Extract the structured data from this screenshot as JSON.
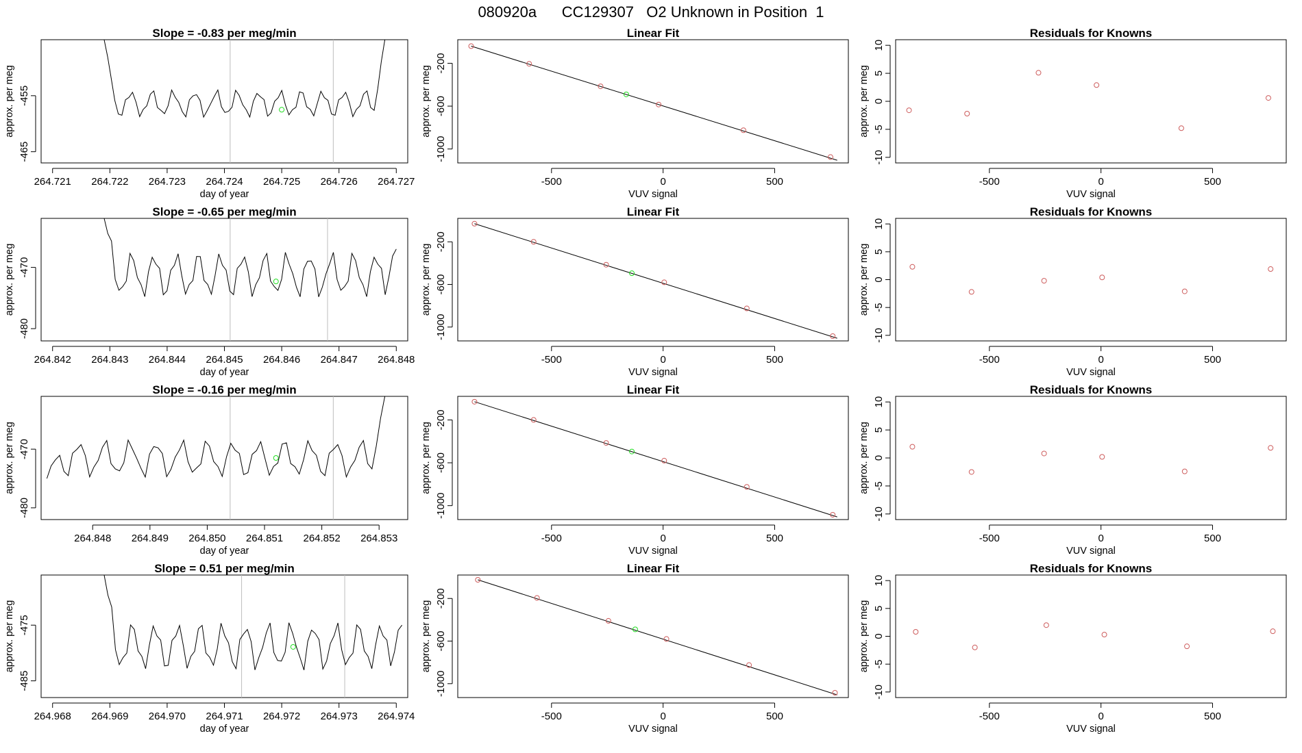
{
  "page": {
    "title": "080920a      CC129307   O2 Unknown in Position  1"
  },
  "colors": {
    "line": "#000000",
    "known_point": "#cd5c5c",
    "unknown_point": "#22dd22",
    "vertical_marker": "#bdbdbd"
  },
  "chart_data": [
    {
      "type": "line",
      "row": 1,
      "panel": "timeseries",
      "title": "Slope =  -0.83  per meg/min",
      "xlabel": "day of year",
      "ylabel": "approx. per meg",
      "xlim": [
        264.7208,
        264.7272
      ],
      "ylim": [
        -467,
        -445
      ],
      "xticks": [
        264.721,
        264.722,
        264.723,
        264.724,
        264.725,
        264.726,
        264.727
      ],
      "xtick_labels": [
        "264.721",
        "264.722",
        "264.723",
        "264.724",
        "264.725",
        "264.726",
        "264.727"
      ],
      "yticks": [
        -455,
        -465
      ],
      "ytick_labels": [
        "-455",
        "-465"
      ],
      "vlines": [
        264.7241,
        264.7259
      ],
      "series": [
        {
          "x_start": 264.7219,
          "x_end": 264.7268,
          "base": -456.4,
          "amplitude": 2.0,
          "period_points": 6,
          "start_high": -445.0,
          "end_high": -445.0
        }
      ],
      "marker": {
        "x": 264.725,
        "y": -457.5
      }
    },
    {
      "type": "scatter",
      "row": 1,
      "panel": "linear_fit",
      "title": "Linear Fit",
      "xlabel": "VUV signal",
      "ylabel": "approx. per meg",
      "xlim": [
        -920,
        830
      ],
      "ylim": [
        -1130,
        20
      ],
      "xticks": [
        -500,
        0,
        500
      ],
      "xtick_labels": [
        "-500",
        "0",
        "500"
      ],
      "yticks": [
        -200,
        -600,
        -1000
      ],
      "ytick_labels": [
        "-200",
        "-600",
        "-1000"
      ],
      "line": {
        "x1": -860,
        "y1": -40,
        "x2": 780,
        "y2": -1105
      },
      "known": {
        "x": [
          -860,
          -600,
          -280,
          -20,
          360,
          750
        ],
        "y": [
          -40,
          -205,
          -415,
          -585,
          -825,
          -1075
        ]
      },
      "unknown": {
        "x": [
          -165
        ],
        "y": [
          -490
        ]
      }
    },
    {
      "type": "scatter",
      "row": 1,
      "panel": "residuals",
      "title": "Residuals for Knowns",
      "xlabel": "VUV signal",
      "ylabel": "approx. per meg",
      "xlim": [
        -920,
        830
      ],
      "ylim": [
        -11,
        11
      ],
      "xticks": [
        -500,
        0,
        500
      ],
      "xtick_labels": [
        "-500",
        "0",
        "500"
      ],
      "yticks": [
        10,
        5,
        0,
        -5,
        -10
      ],
      "ytick_labels": [
        "10",
        "5",
        "0",
        "-5",
        "-10"
      ],
      "known": {
        "x": [
          -860,
          -600,
          -280,
          -20,
          360,
          750
        ],
        "y": [
          -1.6,
          -2.2,
          5.1,
          2.9,
          -4.8,
          0.6
        ]
      }
    },
    {
      "type": "line",
      "row": 2,
      "panel": "timeseries",
      "title": "Slope =  -0.65  per meg/min",
      "xlabel": "day of year",
      "ylabel": "approx. per meg",
      "xlim": [
        264.8418,
        264.8482
      ],
      "ylim": [
        -482,
        -462
      ],
      "xticks": [
        264.842,
        264.843,
        264.844,
        264.845,
        264.846,
        264.847,
        264.848
      ],
      "xtick_labels": [
        "264.842",
        "264.843",
        "264.844",
        "264.845",
        "264.846",
        "264.847",
        "264.848"
      ],
      "yticks": [
        -470,
        -480
      ],
      "ytick_labels": [
        "-470",
        "-480"
      ],
      "vlines": [
        264.8451,
        264.8468
      ],
      "series": [
        {
          "x_start": 264.8429,
          "x_end": 264.848,
          "base": -471.2,
          "amplitude": 3.0,
          "period_points": 6,
          "start_high": -462.0,
          "end_high": -467.0
        }
      ],
      "marker": {
        "x": 264.8459,
        "y": -472.3
      }
    },
    {
      "type": "scatter",
      "row": 2,
      "panel": "linear_fit",
      "title": "Linear Fit",
      "xlabel": "VUV signal",
      "ylabel": "approx. per meg",
      "xlim": [
        -920,
        830
      ],
      "ylim": [
        -1130,
        20
      ],
      "xticks": [
        -500,
        0,
        500
      ],
      "xtick_labels": [
        "-500",
        "0",
        "500"
      ],
      "yticks": [
        -200,
        -600,
        -1000
      ],
      "ytick_labels": [
        "-200",
        "-600",
        "-1000"
      ],
      "line": {
        "x1": -845,
        "y1": -30,
        "x2": 780,
        "y2": -1105
      },
      "known": {
        "x": [
          -845,
          -580,
          -255,
          5,
          375,
          760
        ],
        "y": [
          -30,
          -200,
          -415,
          -580,
          -825,
          -1085
        ]
      },
      "unknown": {
        "x": [
          -140
        ],
        "y": [
          -495
        ]
      }
    },
    {
      "type": "scatter",
      "row": 2,
      "panel": "residuals",
      "title": "Residuals for Knowns",
      "xlabel": "VUV signal",
      "ylabel": "approx. per meg",
      "xlim": [
        -920,
        830
      ],
      "ylim": [
        -11,
        11
      ],
      "xticks": [
        -500,
        0,
        500
      ],
      "xtick_labels": [
        "-500",
        "0",
        "500"
      ],
      "yticks": [
        10,
        5,
        0,
        -5,
        -10
      ],
      "ytick_labels": [
        "10",
        "5",
        "0",
        "-5",
        "-10"
      ],
      "known": {
        "x": [
          -845,
          -580,
          -255,
          5,
          375,
          760
        ],
        "y": [
          2.3,
          -2.2,
          -0.2,
          0.4,
          -2.1,
          1.9
        ]
      }
    },
    {
      "type": "line",
      "row": 3,
      "panel": "timeseries",
      "title": "Slope =  -0.16  per meg/min",
      "xlabel": "day of year",
      "ylabel": "approx. per meg",
      "xlim": [
        264.8471,
        264.8535
      ],
      "ylim": [
        -482,
        -461
      ],
      "xticks": [
        264.848,
        264.849,
        264.85,
        264.851,
        264.852,
        264.853
      ],
      "xtick_labels": [
        "264.848",
        "264.849",
        "264.850",
        "264.851",
        "264.852",
        "264.853"
      ],
      "yticks": [
        -470,
        -480
      ],
      "ytick_labels": [
        "-470",
        "-480"
      ],
      "vlines": [
        264.8504,
        264.8522
      ],
      "series": [
        {
          "x_start": 264.8472,
          "x_end": 264.8531,
          "base": -471.6,
          "amplitude": 2.6,
          "period_points": 6,
          "start_high": -475.0,
          "end_high": -461.0
        }
      ],
      "marker": {
        "x": 264.8512,
        "y": -471.5
      }
    },
    {
      "type": "scatter",
      "row": 3,
      "panel": "linear_fit",
      "title": "Linear Fit",
      "xlabel": "VUV signal",
      "ylabel": "approx. per meg",
      "xlim": [
        -920,
        830
      ],
      "ylim": [
        -1130,
        20
      ],
      "xticks": [
        -500,
        0,
        500
      ],
      "xtick_labels": [
        "-500",
        "0",
        "500"
      ],
      "yticks": [
        -200,
        -600,
        -1000
      ],
      "ytick_labels": [
        "-200",
        "-600",
        "-1000"
      ],
      "line": {
        "x1": -845,
        "y1": -30,
        "x2": 780,
        "y2": -1105
      },
      "known": {
        "x": [
          -845,
          -580,
          -255,
          5,
          375,
          760
        ],
        "y": [
          -30,
          -200,
          -415,
          -580,
          -825,
          -1085
        ]
      },
      "unknown": {
        "x": [
          -140
        ],
        "y": [
          -495
        ]
      }
    },
    {
      "type": "scatter",
      "row": 3,
      "panel": "residuals",
      "title": "Residuals for Knowns",
      "xlabel": "VUV signal",
      "ylabel": "approx. per meg",
      "xlim": [
        -920,
        830
      ],
      "ylim": [
        -11,
        11
      ],
      "xticks": [
        -500,
        0,
        500
      ],
      "xtick_labels": [
        "-500",
        "0",
        "500"
      ],
      "yticks": [
        10,
        5,
        0,
        -5,
        -10
      ],
      "ytick_labels": [
        "10",
        "5",
        "0",
        "-5",
        "-10"
      ],
      "known": {
        "x": [
          -845,
          -580,
          -255,
          5,
          375,
          760
        ],
        "y": [
          2.0,
          -2.5,
          0.8,
          0.2,
          -2.4,
          1.8
        ]
      }
    },
    {
      "type": "line",
      "row": 4,
      "panel": "timeseries",
      "title": "Slope =  0.51  per meg/min",
      "xlabel": "day of year",
      "ylabel": "approx. per meg",
      "xlim": [
        264.9678,
        264.9742
      ],
      "ylim": [
        -488,
        -466
      ],
      "xticks": [
        264.968,
        264.969,
        264.97,
        264.971,
        264.972,
        264.973,
        264.974
      ],
      "xtick_labels": [
        "264.968",
        "264.969",
        "264.970",
        "264.971",
        "264.972",
        "264.973",
        "264.974"
      ],
      "yticks": [
        -475,
        -485
      ],
      "ytick_labels": [
        "-475",
        "-485"
      ],
      "vlines": [
        264.9713,
        264.9731
      ],
      "series": [
        {
          "x_start": 264.9689,
          "x_end": 264.9741,
          "base": -478.8,
          "amplitude": 3.5,
          "period_points": 6,
          "start_high": -466.0,
          "end_high": -475.0
        }
      ],
      "marker": {
        "x": 264.9722,
        "y": -478.9
      }
    },
    {
      "type": "scatter",
      "row": 4,
      "panel": "linear_fit",
      "title": "Linear Fit",
      "xlabel": "VUV signal",
      "ylabel": "approx. per meg",
      "xlim": [
        -920,
        830
      ],
      "ylim": [
        -1130,
        20
      ],
      "xticks": [
        -500,
        0,
        500
      ],
      "xtick_labels": [
        "-500",
        "0",
        "500"
      ],
      "yticks": [
        -200,
        -600,
        -1000
      ],
      "ytick_labels": [
        "-200",
        "-600",
        "-1000"
      ],
      "line": {
        "x1": -830,
        "y1": -25,
        "x2": 780,
        "y2": -1105
      },
      "known": {
        "x": [
          -830,
          -565,
          -245,
          15,
          385,
          770
        ],
        "y": [
          -25,
          -195,
          -410,
          -580,
          -825,
          -1085
        ]
      },
      "unknown": {
        "x": [
          -125
        ],
        "y": [
          -490
        ]
      }
    },
    {
      "type": "scatter",
      "row": 4,
      "panel": "residuals",
      "title": "Residuals for Knowns",
      "xlabel": "VUV signal",
      "ylabel": "approx. per meg",
      "xlim": [
        -920,
        830
      ],
      "ylim": [
        -11,
        11
      ],
      "xticks": [
        -500,
        0,
        500
      ],
      "xtick_labels": [
        "-500",
        "0",
        "500"
      ],
      "yticks": [
        10,
        5,
        0,
        -5,
        -10
      ],
      "ytick_labels": [
        "10",
        "5",
        "0",
        "-5",
        "-10"
      ],
      "known": {
        "x": [
          -830,
          -565,
          -245,
          15,
          385,
          770
        ],
        "y": [
          0.8,
          -2.0,
          2.0,
          0.3,
          -1.8,
          0.9
        ]
      }
    }
  ]
}
